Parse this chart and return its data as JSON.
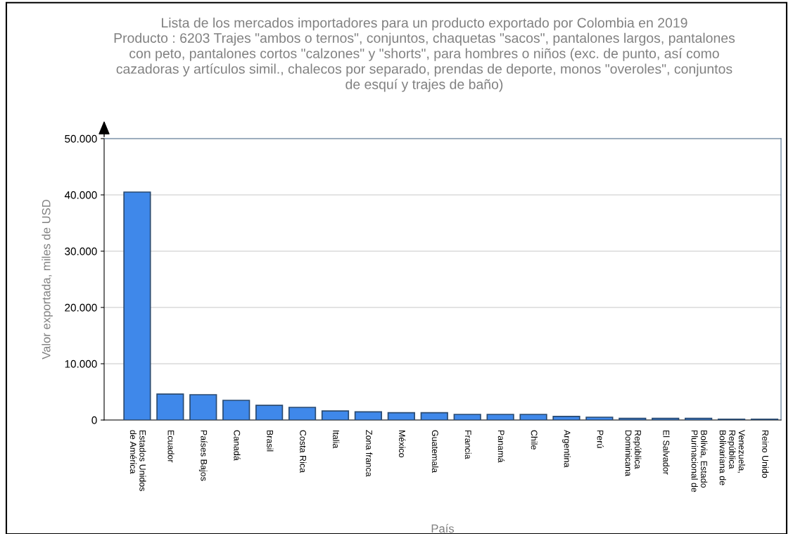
{
  "chart_data": {
    "type": "bar",
    "title": "Lista de los mercados importadores para un producto exportado por Colombia en 2019\nProducto : 6203 Trajes \"ambos o ternos\", conjuntos, chaquetas \"sacos\", pantalones largos, pantalones\ncon peto, pantalones cortos \"calzones\" y \"shorts\", para hombres o niños (exc. de punto, así como\ncazadoras y artículos simil., chalecos por separado, prendas de deporte, monos \"overoles\", conjuntos\nde esquí y trajes de baño)",
    "xlabel": "País",
    "ylabel": "Valor exportada, miles de USD",
    "categories": [
      "Estados Unidos\nde América",
      "Ecuador",
      "Países Bajos",
      "Canadá",
      "Brasil",
      "Costa Rica",
      "Italia",
      "Zona franca",
      "México",
      "Guatemala",
      "Francia",
      "Panamá",
      "Chile",
      "Argentina",
      "Perú",
      "República\nDominicana",
      "El Salvador",
      "Bolivia, Estado\nPlurinacional de",
      "Venezuela,\nRepública\nBolivariana de",
      "Reino Unido"
    ],
    "values": [
      40500,
      4600,
      4500,
      3500,
      2600,
      2250,
      1600,
      1450,
      1300,
      1300,
      1000,
      1000,
      1000,
      650,
      500,
      300,
      300,
      300,
      150,
      150
    ],
    "color": "#3f88ea",
    "ylim": [
      0,
      50000
    ],
    "yticks": [
      {
        "value": 0,
        "label": "0"
      },
      {
        "value": 10000,
        "label": "10.000"
      },
      {
        "value": 20000,
        "label": "20.000"
      },
      {
        "value": 30000,
        "label": "30.000"
      },
      {
        "value": 40000,
        "label": "40.000"
      },
      {
        "value": 50000,
        "label": "50.000"
      }
    ],
    "grid": "y",
    "legend": false
  }
}
